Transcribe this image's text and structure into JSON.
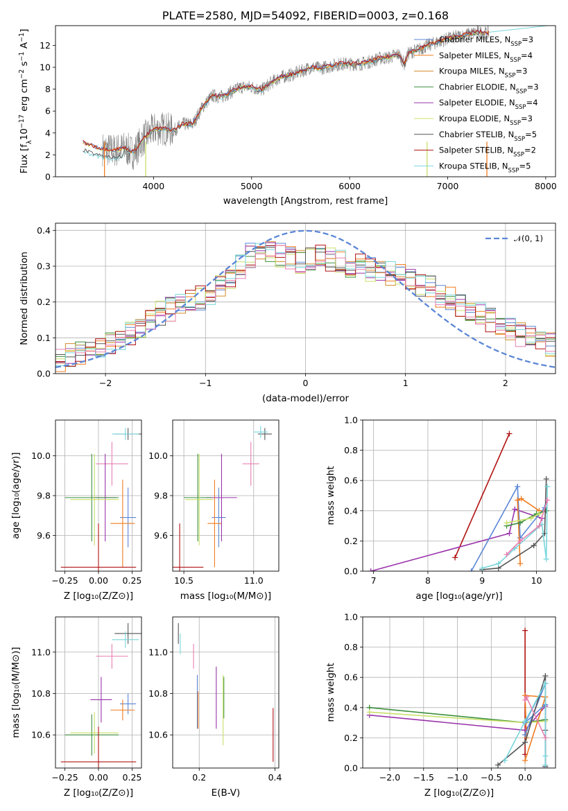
{
  "colors": {
    "Chabrier MILES": "#5b86d6",
    "Salpeter MILES": "#f07b1e",
    "Kroupa MILES": "#d28a2a",
    "Chabrier ELODIE": "#3c8f3c",
    "Salpeter ELODIE": "#9933aa",
    "Kroupa ELODIE": "#c8e06a",
    "Chabrier STELIB": "#555555",
    "Salpeter STELIB": "#b01010",
    "Kroupa STELIB": "#78d6dc",
    "Pink": "#e87fb0",
    "gray_spectrum": "#808080",
    "normal": "#5b86d6"
  },
  "chart_data": [
    {
      "type": "line",
      "title": "PLATE=2580, MJD=54092, FIBERID=0003, z=0.168",
      "xlabel": "wavelength [Angstrom, rest frame]",
      "ylabel_parts": [
        "Flux [f",
        "λ",
        "10",
        "−17",
        " erg cm",
        "−2",
        " s",
        "−1",
        " A",
        "−1",
        "]"
      ],
      "xlim": [
        3000,
        8100
      ],
      "ylim": [
        0,
        13.8
      ],
      "xticks": [
        "4000",
        "5000",
        "6000",
        "7000",
        "8000"
      ],
      "yticks": [
        "0",
        "2",
        "4",
        "6",
        "8",
        "10",
        "12"
      ],
      "grid": false,
      "legend_position": "right",
      "legend": [
        {
          "name": "Chabrier MILES",
          "nssp": "3"
        },
        {
          "name": "Salpeter MILES",
          "nssp": "4"
        },
        {
          "name": "Kroupa MILES",
          "nssp": "3"
        },
        {
          "name": "Chabrier ELODIE",
          "nssp": "3"
        },
        {
          "name": "Salpeter ELODIE",
          "nssp": "4"
        },
        {
          "name": "Kroupa ELODIE",
          "nssp": "3"
        },
        {
          "name": "Chabrier STELIB",
          "nssp": "5"
        },
        {
          "name": "Salpeter STELIB",
          "nssp": "2"
        },
        {
          "name": "Kroupa STELIB",
          "nssp": "5"
        }
      ],
      "continuum_points": [
        [
          3280,
          3.1
        ],
        [
          3400,
          2.7
        ],
        [
          3500,
          2.5
        ],
        [
          3600,
          2.4
        ],
        [
          3700,
          2.6
        ],
        [
          3800,
          2.2
        ],
        [
          3900,
          3.5
        ],
        [
          4000,
          4.3
        ],
        [
          4100,
          4.4
        ],
        [
          4200,
          4.2
        ],
        [
          4300,
          4.8
        ],
        [
          4400,
          4.8
        ],
        [
          4500,
          6.4
        ],
        [
          4600,
          7.4
        ],
        [
          4700,
          7.3
        ],
        [
          4800,
          7.8
        ],
        [
          4900,
          8.2
        ],
        [
          5000,
          8.2
        ],
        [
          5100,
          7.9
        ],
        [
          5200,
          8.6
        ],
        [
          5300,
          9.1
        ],
        [
          5400,
          9.3
        ],
        [
          5500,
          9.6
        ],
        [
          5600,
          10.0
        ],
        [
          5700,
          9.9
        ],
        [
          5800,
          10.1
        ],
        [
          5900,
          10.3
        ],
        [
          6000,
          10.3
        ],
        [
          6100,
          10.3
        ],
        [
          6200,
          10.5
        ],
        [
          6300,
          10.8
        ],
        [
          6400,
          10.9
        ],
        [
          6500,
          11.2
        ],
        [
          6560,
          10.3
        ],
        [
          6600,
          11.3
        ],
        [
          6700,
          11.6
        ],
        [
          6800,
          12.0
        ],
        [
          6900,
          12.3
        ],
        [
          7000,
          12.6
        ],
        [
          7100,
          12.8
        ],
        [
          7200,
          13.0
        ],
        [
          7300,
          13.2
        ],
        [
          7400,
          13.1
        ]
      ]
    },
    {
      "type": "step",
      "xlabel": "(data-model)/error",
      "ylabel": "Normed distribution",
      "xlim": [
        -2.5,
        2.5
      ],
      "ylim": [
        0,
        0.42
      ],
      "xticks": [
        "−2",
        "−1",
        "0",
        "1",
        "2"
      ],
      "yticks": [
        "0.0",
        "0.1",
        "0.2",
        "0.3",
        "0.4"
      ],
      "grid": true,
      "legend_position": "top-right",
      "legend_label": "𝒩(0, 1)",
      "bin_start": -2.5,
      "bin_width": 0.1,
      "base_values": [
        0.04,
        0.05,
        0.06,
        0.07,
        0.08,
        0.08,
        0.09,
        0.11,
        0.13,
        0.15,
        0.17,
        0.18,
        0.19,
        0.21,
        0.21,
        0.22,
        0.24,
        0.27,
        0.3,
        0.33,
        0.34,
        0.34,
        0.33,
        0.32,
        0.31,
        0.32,
        0.33,
        0.32,
        0.31,
        0.3,
        0.3,
        0.29,
        0.29,
        0.28,
        0.27,
        0.26,
        0.25,
        0.24,
        0.22,
        0.21,
        0.19,
        0.18,
        0.17,
        0.15,
        0.14,
        0.12,
        0.11,
        0.1,
        0.09,
        0.08
      ]
    },
    {
      "type": "scatter",
      "ylabel": "age  [log₁₀(age/yr)]",
      "xlabel": "Z [log₁₀(Z/Z⊙)]",
      "xlim": [
        -0.32,
        0.32
      ],
      "ylim": [
        9.42,
        10.18
      ],
      "xticks": [
        "−0.25",
        "0.00",
        "0.25"
      ],
      "yticks": [
        "9.6",
        "9.8",
        "10.0"
      ],
      "grid": true,
      "points": [
        {
          "x": 0.22,
          "y": 10.11,
          "xerr": 0.1,
          "yerr": 0.03,
          "c": "Chabrier STELIB"
        },
        {
          "x": 0.2,
          "y": 10.11,
          "xerr": 0.1,
          "yerr": 0.03,
          "c": "Kroupa STELIB"
        },
        {
          "x": 0.1,
          "y": 9.96,
          "xerr": 0.12,
          "yerr": 0.11,
          "c": "Pink"
        },
        {
          "x": 0.22,
          "y": 9.69,
          "xerr": 0.06,
          "yerr": 0.15,
          "c": "Chabrier MILES"
        },
        {
          "x": 0.18,
          "y": 9.66,
          "xerr": 0.09,
          "yerr": 0.22,
          "c": "Salpeter MILES"
        },
        {
          "x": 0.05,
          "y": 9.79,
          "xerr": 0.08,
          "yerr": 0.22,
          "c": "Salpeter ELODIE"
        },
        {
          "x": -0.05,
          "y": 9.79,
          "xerr": 0.2,
          "yerr": 0.22,
          "c": "Chabrier ELODIE"
        },
        {
          "x": -0.03,
          "y": 9.78,
          "xerr": 0.18,
          "yerr": 0.23,
          "c": "Kroupa ELODIE"
        },
        {
          "x": 0.0,
          "y": 9.44,
          "xerr": 0.28,
          "yerr": 0.22,
          "c": "Salpeter STELIB"
        },
        {
          "x": 0.0,
          "y": 9.66,
          "xerr": 0.0,
          "yerr": 0.0,
          "c": "Salpeter MILES"
        }
      ]
    },
    {
      "type": "scatter",
      "xlabel": "mass [log₁₀(M/M⊙)]",
      "xlim": [
        10.42,
        11.18
      ],
      "ylim": [
        9.42,
        10.18
      ],
      "xticks": [
        "10.5",
        "11.0"
      ],
      "yticks": [
        "9.6",
        "9.8",
        "10.0"
      ],
      "grid": true,
      "points": [
        {
          "x": 11.08,
          "y": 10.11,
          "xerr": 0.05,
          "yerr": 0.03,
          "c": "Chabrier STELIB"
        },
        {
          "x": 11.05,
          "y": 10.12,
          "xerr": 0.05,
          "yerr": 0.03,
          "c": "Kroupa STELIB"
        },
        {
          "x": 10.98,
          "y": 9.96,
          "xerr": 0.06,
          "yerr": 0.11,
          "c": "Pink"
        },
        {
          "x": 10.75,
          "y": 9.69,
          "xerr": 0.05,
          "yerr": 0.15,
          "c": "Chabrier MILES"
        },
        {
          "x": 10.72,
          "y": 9.66,
          "xerr": 0.05,
          "yerr": 0.22,
          "c": "Salpeter MILES"
        },
        {
          "x": 10.77,
          "y": 9.79,
          "xerr": 0.11,
          "yerr": 0.22,
          "c": "Salpeter ELODIE"
        },
        {
          "x": 10.6,
          "y": 9.79,
          "xerr": 0.1,
          "yerr": 0.22,
          "c": "Chabrier ELODIE"
        },
        {
          "x": 10.61,
          "y": 9.78,
          "xerr": 0.1,
          "yerr": 0.23,
          "c": "Kroupa ELODIE"
        },
        {
          "x": 10.47,
          "y": 9.44,
          "xerr": 0.17,
          "yerr": 0.22,
          "c": "Salpeter STELIB"
        }
      ]
    },
    {
      "type": "line",
      "xlabel": "age  [log₁₀(age/yr)]",
      "ylabel": "mass weight",
      "xlim": [
        6.8,
        10.35
      ],
      "ylim": [
        0,
        1
      ],
      "xticks": [
        "7",
        "8",
        "9",
        "10"
      ],
      "yticks": [
        "0.0",
        "0.2",
        "0.4",
        "0.6",
        "0.8",
        "1.0"
      ],
      "grid": true,
      "series": [
        {
          "c": "Salpeter STELIB",
          "x": [
            8.5,
            9.5
          ],
          "y": [
            0.09,
            0.91
          ]
        },
        {
          "c": "Salpeter ELODIE",
          "x": [
            6.95,
            9.5,
            9.6,
            10.1
          ],
          "y": [
            0.0,
            0.25,
            0.41,
            0.35
          ]
        },
        {
          "c": "Chabrier MILES",
          "x": [
            8.8,
            9.65,
            9.7,
            10.15
          ],
          "y": [
            0.0,
            0.56,
            0.22,
            0.42
          ]
        },
        {
          "c": "Salpeter MILES",
          "x": [
            9.7,
            9.65,
            9.72,
            10.05
          ],
          "y": [
            0.05,
            0.47,
            0.48,
            0.4
          ]
        },
        {
          "c": "Chabrier ELODIE",
          "x": [
            9.45,
            9.7,
            10.0,
            10.18
          ],
          "y": [
            0.3,
            0.32,
            0.38,
            0.4
          ]
        },
        {
          "c": "Kroupa ELODIE",
          "x": [
            9.45,
            9.9,
            10.05
          ],
          "y": [
            0.32,
            0.35,
            0.38
          ]
        },
        {
          "c": "Chabrier STELIB",
          "x": [
            9.0,
            9.3,
            9.95,
            10.15,
            10.18
          ],
          "y": [
            0.01,
            0.02,
            0.17,
            0.25,
            0.61
          ]
        },
        {
          "c": "Kroupa STELIB",
          "x": [
            9.0,
            9.3,
            9.6,
            10.1,
            10.18,
            10.2
          ],
          "y": [
            0.02,
            0.05,
            0.15,
            0.31,
            0.08,
            0.56
          ]
        },
        {
          "c": "Pink",
          "x": [
            9.45,
            9.7,
            10.05,
            10.2
          ],
          "y": [
            0.11,
            0.2,
            0.3,
            0.47
          ]
        }
      ]
    },
    {
      "type": "scatter",
      "ylabel": "mass [log₁₀(M/M⊙)]",
      "xlabel": "Z [log₁₀(Z/Z⊙)]",
      "xlim": [
        -0.32,
        0.32
      ],
      "ylim": [
        10.44,
        11.17
      ],
      "xticks": [
        "−0.25",
        "0.00",
        "0.25"
      ],
      "yticks": [
        "10.6",
        "10.8",
        "11.0"
      ],
      "grid": true,
      "points": [
        {
          "x": 0.22,
          "y": 11.09,
          "xerr": 0.1,
          "yerr": 0.05,
          "c": "Chabrier STELIB"
        },
        {
          "x": 0.2,
          "y": 11.06,
          "xerr": 0.1,
          "yerr": 0.04,
          "c": "Kroupa STELIB"
        },
        {
          "x": 0.1,
          "y": 10.98,
          "xerr": 0.12,
          "yerr": 0.06,
          "c": "Pink"
        },
        {
          "x": 0.22,
          "y": 10.75,
          "xerr": 0.06,
          "yerr": 0.05,
          "c": "Chabrier MILES"
        },
        {
          "x": 0.18,
          "y": 10.72,
          "xerr": 0.09,
          "yerr": 0.05,
          "c": "Salpeter MILES"
        },
        {
          "x": 0.02,
          "y": 10.77,
          "xerr": 0.08,
          "yerr": 0.11,
          "c": "Salpeter ELODIE"
        },
        {
          "x": -0.05,
          "y": 10.6,
          "xerr": 0.2,
          "yerr": 0.1,
          "c": "Chabrier ELODIE"
        },
        {
          "x": -0.03,
          "y": 10.61,
          "xerr": 0.18,
          "yerr": 0.1,
          "c": "Kroupa ELODIE"
        },
        {
          "x": 0.0,
          "y": 10.47,
          "xerr": 0.28,
          "yerr": 0.17,
          "c": "Salpeter STELIB"
        }
      ]
    },
    {
      "type": "scatter",
      "xlabel": "E(B-V)",
      "xlim": [
        0.13,
        0.41
      ],
      "ylim": [
        10.44,
        11.17
      ],
      "xticks": [
        "0.2",
        "0.4"
      ],
      "yticks": [
        "10.6",
        "10.8",
        "11.0"
      ],
      "grid": true,
      "points": [
        {
          "x": 0.145,
          "y": 11.09,
          "xerr": 0,
          "yerr": 0.05,
          "c": "Chabrier STELIB"
        },
        {
          "x": 0.15,
          "y": 11.04,
          "xerr": 0,
          "yerr": 0.05,
          "c": "Kroupa STELIB"
        },
        {
          "x": 0.185,
          "y": 10.98,
          "xerr": 0,
          "yerr": 0.06,
          "c": "Pink"
        },
        {
          "x": 0.195,
          "y": 10.76,
          "xerr": 0,
          "yerr": 0.13,
          "c": "Chabrier MILES"
        },
        {
          "x": 0.197,
          "y": 10.72,
          "xerr": 0,
          "yerr": 0.09,
          "c": "Salpeter MILES"
        },
        {
          "x": 0.245,
          "y": 10.78,
          "xerr": 0,
          "yerr": 0.15,
          "c": "Salpeter ELODIE"
        },
        {
          "x": 0.265,
          "y": 10.78,
          "xerr": 0,
          "yerr": 0.1,
          "c": "Chabrier ELODIE"
        },
        {
          "x": 0.263,
          "y": 10.72,
          "xerr": 0,
          "yerr": 0.17,
          "c": "Kroupa ELODIE"
        },
        {
          "x": 0.395,
          "y": 10.6,
          "xerr": 0,
          "yerr": 0.13,
          "c": "Salpeter STELIB"
        }
      ]
    },
    {
      "type": "line",
      "xlabel": "Z [log₁₀(Z/Z⊙)]",
      "ylabel": "mass weight",
      "xlim": [
        -2.4,
        0.45
      ],
      "ylim": [
        0,
        1
      ],
      "xticks": [
        "−2.0",
        "−1.5",
        "−1.0",
        "−0.5",
        "0.0"
      ],
      "yticks": [
        "0.0",
        "0.2",
        "0.4",
        "0.6",
        "0.8",
        "1.0"
      ],
      "grid": true,
      "series": [
        {
          "c": "Salpeter STELIB",
          "x": [
            0.0,
            0.0
          ],
          "y": [
            0.09,
            0.91
          ]
        },
        {
          "c": "Salpeter ELODIE",
          "x": [
            -2.3,
            0.0,
            0.3,
            0.3
          ],
          "y": [
            0.35,
            0.25,
            0.41,
            0.0
          ]
        },
        {
          "c": "Chabrier ELODIE",
          "x": [
            -2.3,
            0.0,
            0.3
          ],
          "y": [
            0.4,
            0.3,
            0.32
          ]
        },
        {
          "c": "Kroupa ELODIE",
          "x": [
            -2.3,
            0.0,
            0.3
          ],
          "y": [
            0.37,
            0.3,
            0.31
          ]
        },
        {
          "c": "Salpeter MILES",
          "x": [
            0.0,
            0.3,
            0.0,
            0.02
          ],
          "y": [
            0.05,
            0.47,
            0.48,
            0.2
          ]
        },
        {
          "c": "Chabrier MILES",
          "x": [
            0.0,
            0.3,
            0.0,
            0.3
          ],
          "y": [
            0.22,
            0.56,
            0.3,
            0.42
          ]
        },
        {
          "c": "Chabrier STELIB",
          "x": [
            -0.4,
            0.0,
            0.3,
            0.3,
            0.3
          ],
          "y": [
            0.02,
            0.17,
            0.61,
            0.25,
            0.01
          ]
        },
        {
          "c": "Kroupa STELIB",
          "x": [
            -0.3,
            0.0,
            0.3,
            0.3,
            0.3
          ],
          "y": [
            0.05,
            0.31,
            0.56,
            0.08,
            0.02
          ]
        },
        {
          "c": "Pink",
          "x": [
            0.0,
            0.02,
            0.3
          ],
          "y": [
            0.45,
            0.47,
            0.2
          ]
        }
      ]
    }
  ]
}
